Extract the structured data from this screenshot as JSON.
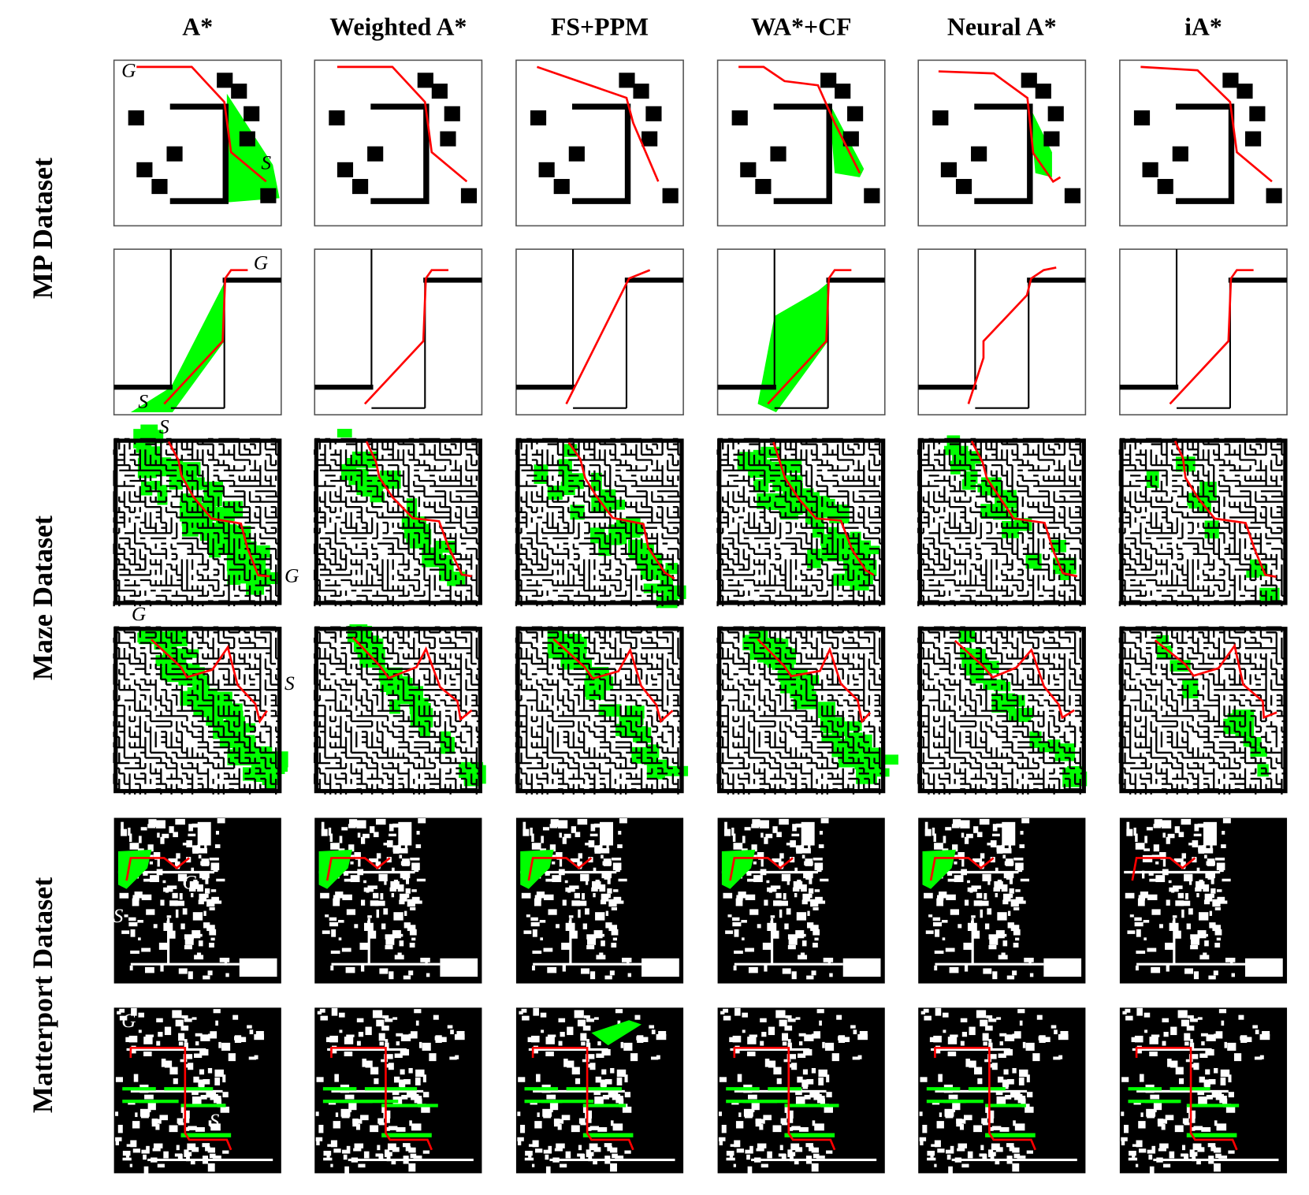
{
  "columns": [
    "A*",
    "Weighted A*",
    "FS+PPM",
    "WA*+CF",
    "Neural A*",
    "iA*"
  ],
  "rows": [
    "MP Dataset",
    "Maze Dataset",
    "Matterport Dataset"
  ],
  "annotations": {
    "start": "S",
    "goal": "G"
  }
}
